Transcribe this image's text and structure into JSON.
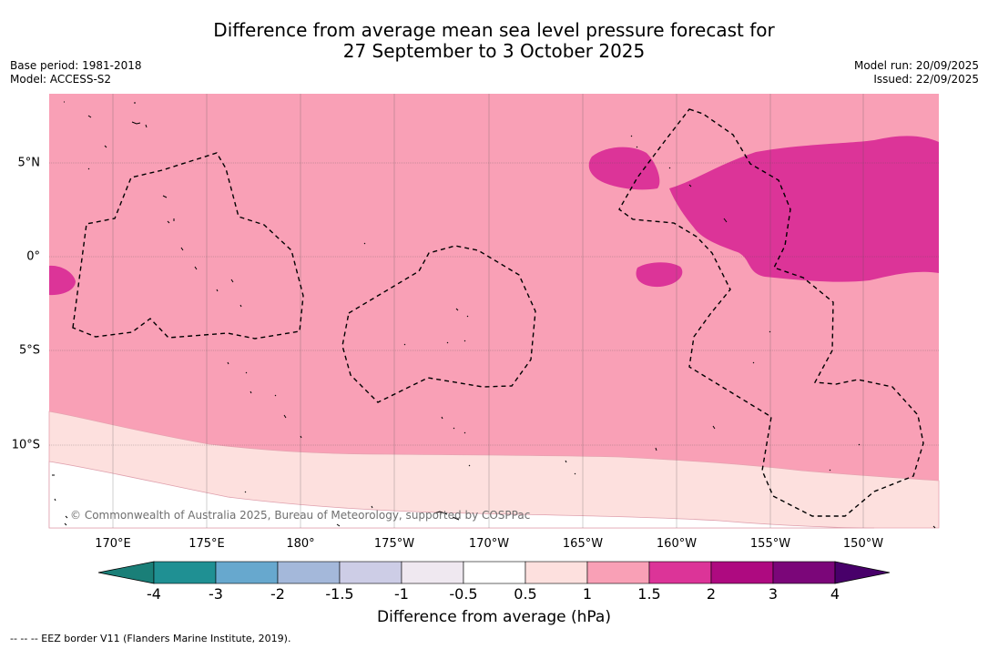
{
  "title": {
    "line1": "Difference from average mean sea level pressure forecast for",
    "line2": "27 September to 3 October 2025"
  },
  "meta": {
    "base_period": "Base period: 1981-2018",
    "model": "Model: ACCESS-S2",
    "model_run": "Model run: 20/09/2025",
    "issued": "Issued: 22/09/2025"
  },
  "map": {
    "lon_labels": [
      "170°E",
      "175°E",
      "180°",
      "175°W",
      "170°W",
      "165°W",
      "160°W",
      "155°W",
      "150°W"
    ],
    "lat_labels": [
      "5°N",
      "0°",
      "5°S",
      "10°S"
    ],
    "copyright": "© Commonwealth of Australia 2025, Bureau of Meteorology, supported by COSPPac",
    "colors": {
      "anomaly_0_5_to_1": "#fde0de",
      "anomaly_1_to_1_5": "#f9a0b6",
      "anomaly_1_5_to_2": "#dc3498"
    }
  },
  "colorbar": {
    "ticks": [
      "-4",
      "-3",
      "-2",
      "-1.5",
      "-1",
      "-0.5",
      "0.5",
      "1",
      "1.5",
      "2",
      "3",
      "4"
    ],
    "colors": [
      "#1a7f78",
      "#1f9093",
      "#67a8ce",
      "#a4b8da",
      "#cdcde6",
      "#efe8f0",
      "#ffffff",
      "#fde0de",
      "#f9a0b6",
      "#dc3498",
      "#ae0a80",
      "#7b0679",
      "#48006a"
    ],
    "label": "Difference from average (hPa)"
  },
  "footnote": "--  --  -- EEZ border V11 (Flanders Marine Institute, 2019)."
}
